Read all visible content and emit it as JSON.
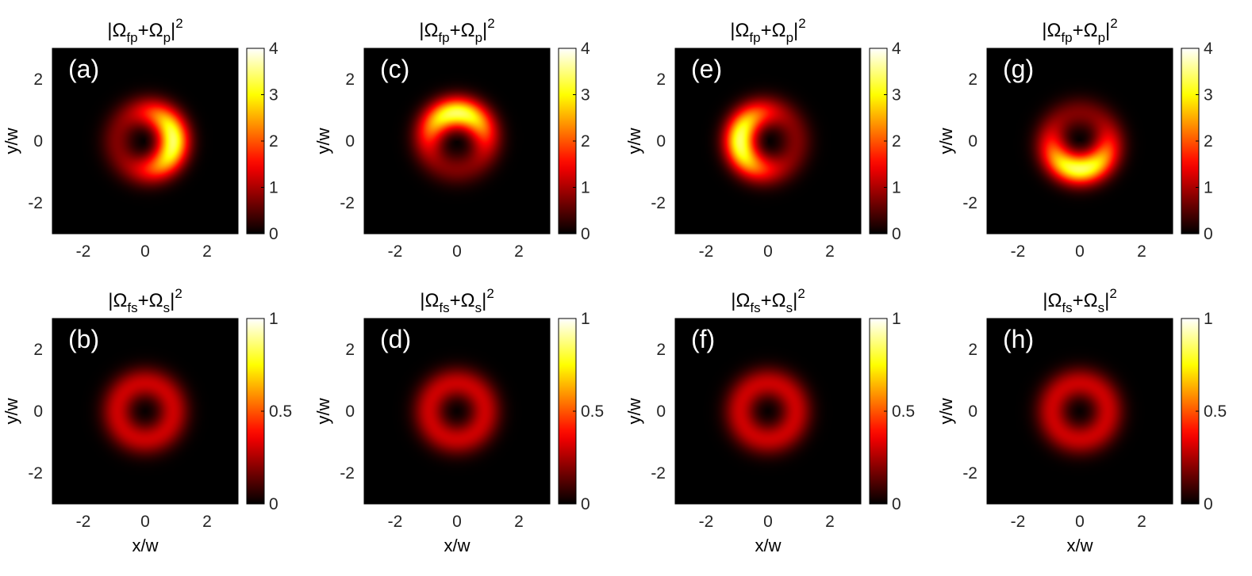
{
  "chart_data": [
    {
      "type": "heatmap",
      "panel_label": "(a)",
      "title": "|Ω_fp+Ω_p|^2",
      "title_parts": {
        "prefix": "|",
        "sym1": "Ω",
        "sub1": "fp",
        "plus": "+",
        "sym2": "Ω",
        "sub2": "p",
        "close": "|",
        "sup": "2"
      },
      "xlabel": "",
      "ylabel": "y/w",
      "xlim": [
        -3,
        3
      ],
      "ylim": [
        -3,
        3
      ],
      "xticks": [
        "-2",
        "0",
        "2"
      ],
      "xtick_values": [
        -2,
        0,
        2
      ],
      "yticks": [
        "-2",
        "0",
        "2"
      ],
      "ytick_values": [
        -2,
        0,
        2
      ],
      "colorbar": {
        "range": [
          0,
          4
        ],
        "ticks": [
          "0",
          "1",
          "2",
          "3",
          "4"
        ],
        "tick_values": [
          0,
          1,
          2,
          3,
          4
        ]
      },
      "colormap": "hot",
      "field": {
        "shape": "crescent",
        "ring_radius": 0.9,
        "width": 0.5,
        "peak": 3.4,
        "bright_direction": "right"
      }
    },
    {
      "type": "heatmap",
      "panel_label": "(b)",
      "title": "|Ω_fs+Ω_s|^2",
      "title_parts": {
        "prefix": "|",
        "sym1": "Ω",
        "sub1": "fs",
        "plus": "+",
        "sym2": "Ω",
        "sub2": "s",
        "close": "|",
        "sup": "2"
      },
      "xlabel": "x/w",
      "ylabel": "y/w",
      "xlim": [
        -3,
        3
      ],
      "ylim": [
        -3,
        3
      ],
      "xticks": [
        "-2",
        "0",
        "2"
      ],
      "xtick_values": [
        -2,
        0,
        2
      ],
      "yticks": [
        "-2",
        "0",
        "2"
      ],
      "ytick_values": [
        -2,
        0,
        2
      ],
      "colorbar": {
        "range": [
          0,
          1
        ],
        "ticks": [
          "0",
          "0.5",
          "1"
        ],
        "tick_values": [
          0,
          0.5,
          1
        ]
      },
      "colormap": "hot",
      "field": {
        "shape": "ring",
        "ring_radius": 0.9,
        "width": 0.5,
        "peak": 0.3
      }
    },
    {
      "type": "heatmap",
      "panel_label": "(c)",
      "title": "|Ω_fp+Ω_p|^2",
      "title_parts": {
        "prefix": "|",
        "sym1": "Ω",
        "sub1": "fp",
        "plus": "+",
        "sym2": "Ω",
        "sub2": "p",
        "close": "|",
        "sup": "2"
      },
      "xlabel": "",
      "ylabel": "y/w",
      "xlim": [
        -3,
        3
      ],
      "ylim": [
        -3,
        3
      ],
      "xticks": [
        "-2",
        "0",
        "2"
      ],
      "xtick_values": [
        -2,
        0,
        2
      ],
      "yticks": [
        "-2",
        "0",
        "2"
      ],
      "ytick_values": [
        -2,
        0,
        2
      ],
      "colorbar": {
        "range": [
          0,
          4
        ],
        "ticks": [
          "0",
          "1",
          "2",
          "3",
          "4"
        ],
        "tick_values": [
          0,
          1,
          2,
          3,
          4
        ]
      },
      "colormap": "hot",
      "field": {
        "shape": "crescent",
        "ring_radius": 0.9,
        "width": 0.5,
        "peak": 3.4,
        "bright_direction": "up"
      }
    },
    {
      "type": "heatmap",
      "panel_label": "(d)",
      "title": "|Ω_fs+Ω_s|^2",
      "title_parts": {
        "prefix": "|",
        "sym1": "Ω",
        "sub1": "fs",
        "plus": "+",
        "sym2": "Ω",
        "sub2": "s",
        "close": "|",
        "sup": "2"
      },
      "xlabel": "x/w",
      "ylabel": "y/w",
      "xlim": [
        -3,
        3
      ],
      "ylim": [
        -3,
        3
      ],
      "xticks": [
        "-2",
        "0",
        "2"
      ],
      "xtick_values": [
        -2,
        0,
        2
      ],
      "yticks": [
        "-2",
        "0",
        "2"
      ],
      "ytick_values": [
        -2,
        0,
        2
      ],
      "colorbar": {
        "range": [
          0,
          1
        ],
        "ticks": [
          "0",
          "0.5",
          "1"
        ],
        "tick_values": [
          0,
          0.5,
          1
        ]
      },
      "colormap": "hot",
      "field": {
        "shape": "ring",
        "ring_radius": 0.9,
        "width": 0.5,
        "peak": 0.3
      }
    },
    {
      "type": "heatmap",
      "panel_label": "(e)",
      "title": "|Ω_fp+Ω_p|^2",
      "title_parts": {
        "prefix": "|",
        "sym1": "Ω",
        "sub1": "fp",
        "plus": "+",
        "sym2": "Ω",
        "sub2": "p",
        "close": "|",
        "sup": "2"
      },
      "xlabel": "",
      "ylabel": "y/w",
      "xlim": [
        -3,
        3
      ],
      "ylim": [
        -3,
        3
      ],
      "xticks": [
        "-2",
        "0",
        "2"
      ],
      "xtick_values": [
        -2,
        0,
        2
      ],
      "yticks": [
        "-2",
        "0",
        "2"
      ],
      "ytick_values": [
        -2,
        0,
        2
      ],
      "colorbar": {
        "range": [
          0,
          4
        ],
        "ticks": [
          "0",
          "1",
          "2",
          "3",
          "4"
        ],
        "tick_values": [
          0,
          1,
          2,
          3,
          4
        ]
      },
      "colormap": "hot",
      "field": {
        "shape": "crescent",
        "ring_radius": 0.9,
        "width": 0.5,
        "peak": 3.4,
        "bright_direction": "left"
      }
    },
    {
      "type": "heatmap",
      "panel_label": "(f)",
      "title": "|Ω_fs+Ω_s|^2",
      "title_parts": {
        "prefix": "|",
        "sym1": "Ω",
        "sub1": "fs",
        "plus": "+",
        "sym2": "Ω",
        "sub2": "s",
        "close": "|",
        "sup": "2"
      },
      "xlabel": "x/w",
      "ylabel": "y/w",
      "xlim": [
        -3,
        3
      ],
      "ylim": [
        -3,
        3
      ],
      "xticks": [
        "-2",
        "0",
        "2"
      ],
      "xtick_values": [
        -2,
        0,
        2
      ],
      "yticks": [
        "-2",
        "0",
        "2"
      ],
      "ytick_values": [
        -2,
        0,
        2
      ],
      "colorbar": {
        "range": [
          0,
          1
        ],
        "ticks": [
          "0",
          "0.5",
          "1"
        ],
        "tick_values": [
          0,
          0.5,
          1
        ]
      },
      "colormap": "hot",
      "field": {
        "shape": "ring",
        "ring_radius": 0.9,
        "width": 0.5,
        "peak": 0.3
      }
    },
    {
      "type": "heatmap",
      "panel_label": "(g)",
      "title": "|Ω_fp+Ω_p|^2",
      "title_parts": {
        "prefix": "|",
        "sym1": "Ω",
        "sub1": "fp",
        "plus": "+",
        "sym2": "Ω",
        "sub2": "p",
        "close": "|",
        "sup": "2"
      },
      "xlabel": "",
      "ylabel": "y/w",
      "xlim": [
        -3,
        3
      ],
      "ylim": [
        -3,
        3
      ],
      "xticks": [
        "-2",
        "0",
        "2"
      ],
      "xtick_values": [
        -2,
        0,
        2
      ],
      "yticks": [
        "-2",
        "0",
        "2"
      ],
      "ytick_values": [
        -2,
        0,
        2
      ],
      "colorbar": {
        "range": [
          0,
          4
        ],
        "ticks": [
          "0",
          "1",
          "2",
          "3",
          "4"
        ],
        "tick_values": [
          0,
          1,
          2,
          3,
          4
        ]
      },
      "colormap": "hot",
      "field": {
        "shape": "crescent",
        "ring_radius": 0.9,
        "width": 0.5,
        "peak": 3.4,
        "bright_direction": "down"
      }
    },
    {
      "type": "heatmap",
      "panel_label": "(h)",
      "title": "|Ω_fs+Ω_s|^2",
      "title_parts": {
        "prefix": "|",
        "sym1": "Ω",
        "sub1": "fs",
        "plus": "+",
        "sym2": "Ω",
        "sub2": "s",
        "close": "|",
        "sup": "2"
      },
      "xlabel": "x/w",
      "ylabel": "y/w",
      "xlim": [
        -3,
        3
      ],
      "ylim": [
        -3,
        3
      ],
      "xticks": [
        "-2",
        "0",
        "2"
      ],
      "xtick_values": [
        -2,
        0,
        2
      ],
      "yticks": [
        "-2",
        "0",
        "2"
      ],
      "ytick_values": [
        -2,
        0,
        2
      ],
      "colorbar": {
        "range": [
          0,
          1
        ],
        "ticks": [
          "0",
          "0.5",
          "1"
        ],
        "tick_values": [
          0,
          0.5,
          1
        ]
      },
      "colormap": "hot",
      "field": {
        "shape": "ring",
        "ring_radius": 0.9,
        "width": 0.5,
        "peak": 0.3
      }
    }
  ]
}
